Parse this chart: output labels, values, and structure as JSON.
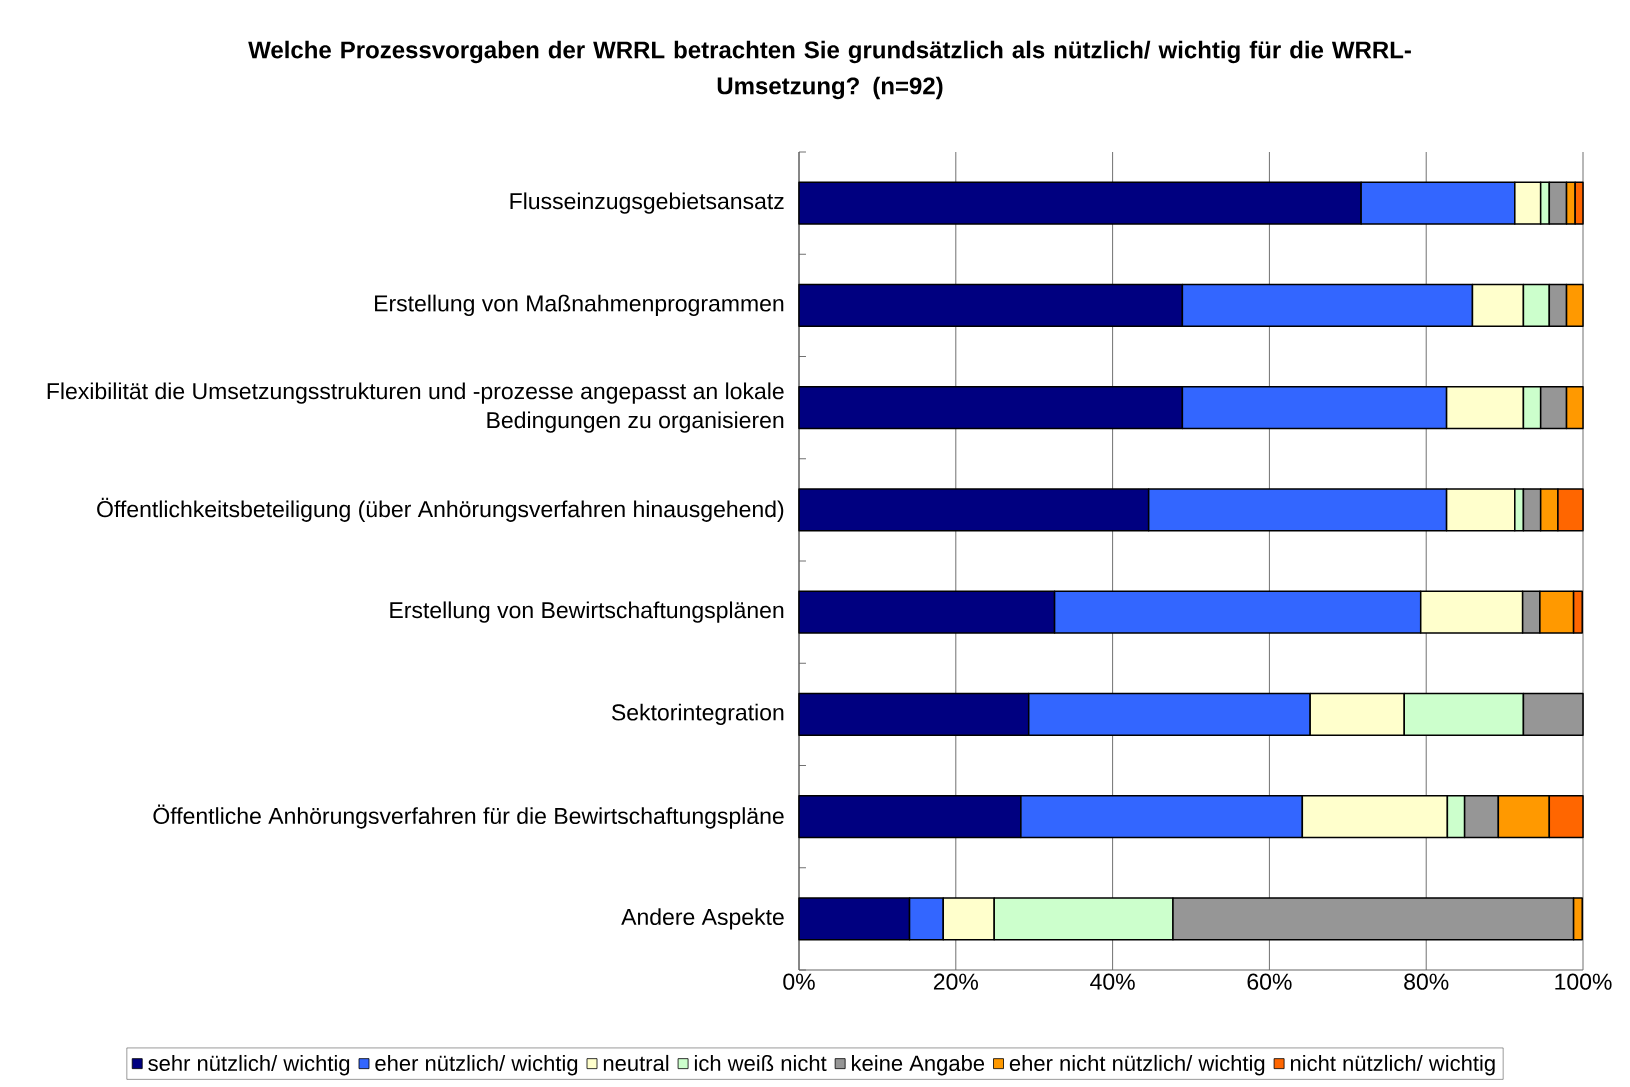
{
  "chart_data": {
    "type": "bar",
    "orientation": "horizontal",
    "stacked": true,
    "title": "Welche Prozessvorgaben der WRRL betrachten Sie grundsätzlich als nützlich/ wichtig für die WRRL-Umsetzung? (n=92)",
    "categories": [
      "Flusseinzugsgebietsansatz",
      "Erstellung von Maßnahmenprogrammen",
      "Flexibilität die Umsetzungsstrukturen und -prozesse angepasst an lokale Bedingungen zu organisieren",
      "Öffentlichkeitsbeteiligung (über Anhörungsverfahren hinausgehend)",
      "Erstellung von Bewirtschaftungsplänen",
      "Sektorintegration",
      "Öffentliche Anhörungsverfahren für die Bewirtschaftungspläne",
      "Andere Aspekte"
    ],
    "series": [
      {
        "name": "sehr nützlich/ wichtig",
        "color": "#000080",
        "values": [
          71.7,
          48.9,
          48.9,
          44.6,
          32.6,
          29.3,
          28.3,
          14.1
        ]
      },
      {
        "name": "eher nützlich/ wichtig",
        "color": "#3366ff",
        "values": [
          19.6,
          37.0,
          33.7,
          38.0,
          46.7,
          35.9,
          35.9,
          4.3
        ]
      },
      {
        "name": "neutral",
        "color": "#ffffcc",
        "values": [
          3.3,
          6.5,
          9.8,
          8.7,
          13.0,
          12.0,
          18.5,
          6.5
        ]
      },
      {
        "name": "ich weiß nicht",
        "color": "#ccffcc",
        "values": [
          1.1,
          3.3,
          2.2,
          1.1,
          null,
          15.2,
          2.2,
          22.8
        ]
      },
      {
        "name": "keine Angabe",
        "color": "#969696",
        "values": [
          2.2,
          2.2,
          3.3,
          2.2,
          2.2,
          7.6,
          4.3,
          51.1
        ]
      },
      {
        "name": "eher nicht nützlich/ wichtig",
        "color": "#ff9900",
        "values": [
          1.1,
          2.1,
          2.1,
          2.2,
          4.3,
          null,
          6.5,
          1.1
        ]
      },
      {
        "name": "nicht nützlich/ wichtig",
        "color": "#ff6600",
        "values": [
          1.0,
          null,
          null,
          3.2,
          1.1,
          null,
          4.3,
          null
        ]
      }
    ],
    "xlim": [
      0,
      100
    ],
    "xticks": [
      {
        "value": 0,
        "label": "0%"
      },
      {
        "value": 20,
        "label": "20%"
      },
      {
        "value": 40,
        "label": "40%"
      },
      {
        "value": 60,
        "label": "60%"
      },
      {
        "value": 80,
        "label": "80%"
      },
      {
        "value": 100,
        "label": "100%"
      }
    ],
    "grid": "x",
    "legend": "bottom"
  }
}
